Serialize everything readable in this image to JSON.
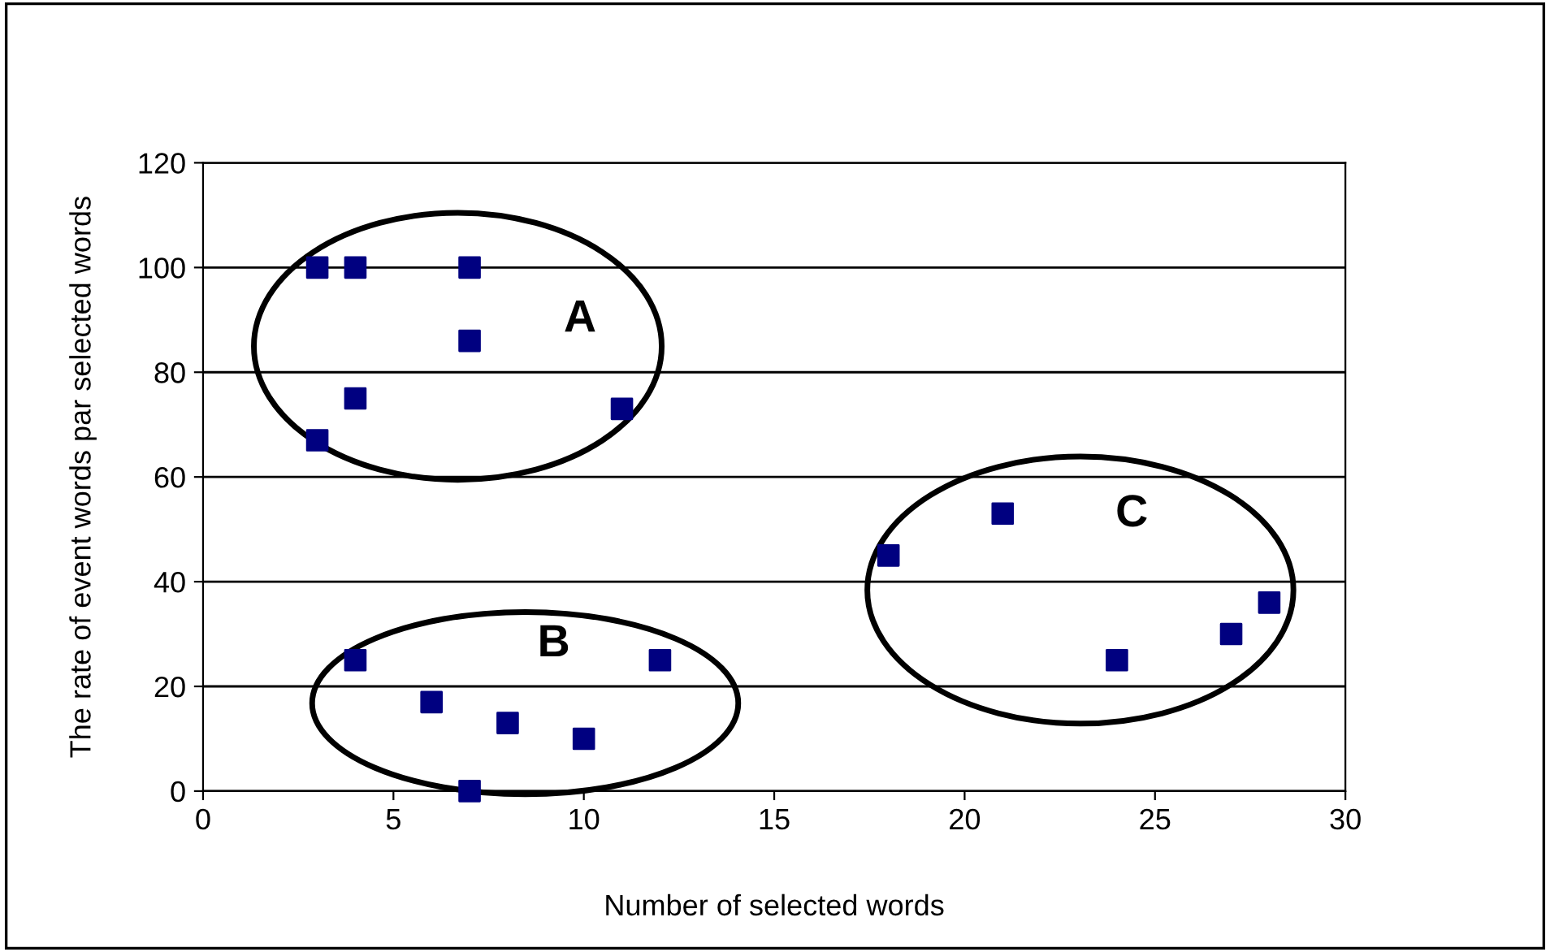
{
  "chart_data": {
    "type": "scatter",
    "xlabel": "Number of selected words",
    "ylabel": "The rate of event words par selected words",
    "series": [
      {
        "color": "#000080",
        "x": [
          3,
          4,
          7,
          7,
          4,
          3,
          11,
          4,
          6,
          8,
          7,
          10,
          12,
          18,
          21,
          24,
          27,
          28
        ],
        "values": [
          100,
          100,
          100,
          86,
          75,
          67,
          73,
          25,
          17,
          13,
          0,
          10,
          25,
          45,
          53,
          25,
          30,
          36
        ]
      }
    ],
    "marker": "square",
    "xlim": [
      0,
      30
    ],
    "xticks": [
      0,
      5,
      10,
      15,
      20,
      25,
      30
    ],
    "ylim": [
      0,
      120
    ],
    "yticks": [
      0,
      20,
      40,
      60,
      80,
      100,
      120
    ],
    "grid": "y",
    "legend": false,
    "annotations": [
      "A",
      "B",
      "C"
    ]
  }
}
